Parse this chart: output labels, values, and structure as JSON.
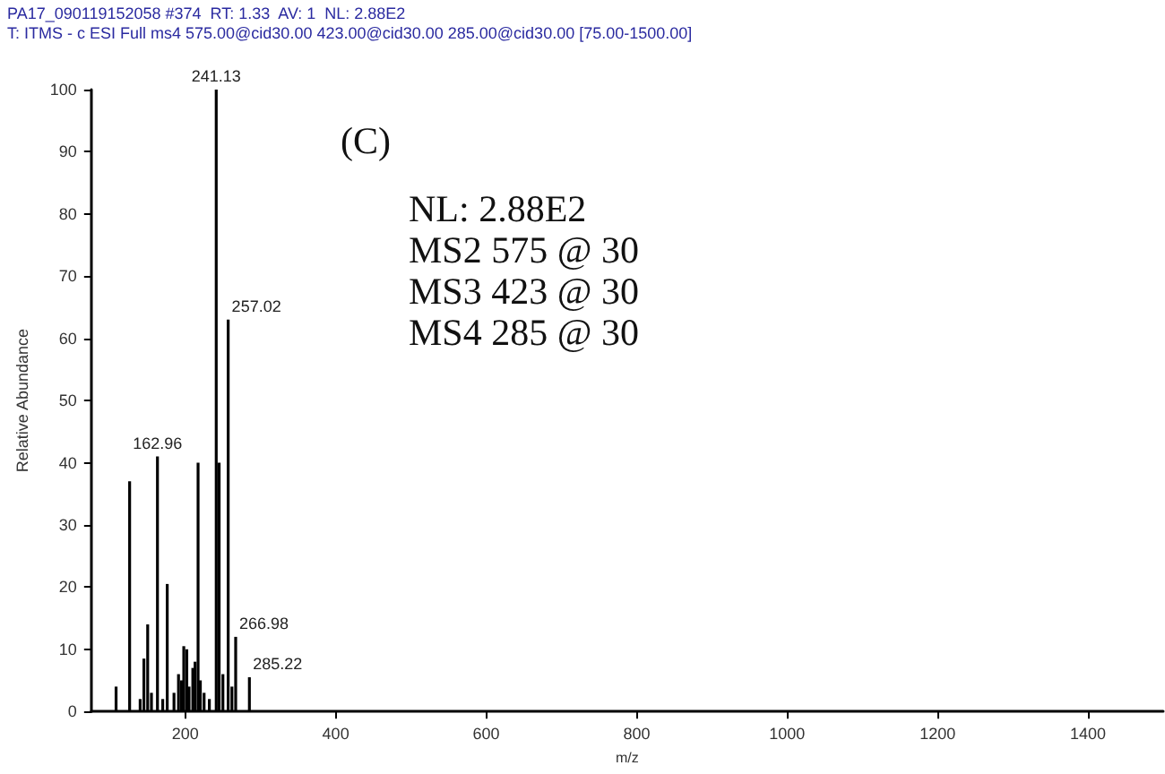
{
  "chart_data": {
    "type": "bar",
    "title": "PA17_090119152058 #374  RT: 1.33  AV: 1  NL: 2.88E2",
    "subtitle": "T: ITMS - c ESI Full ms4 575.00@cid30.00 423.00@cid30.00 285.00@cid30.00 [75.00-1500.00]",
    "xlabel": "m/z",
    "ylabel": "Relative Abundance",
    "annotations": [
      "(C)",
      "NL: 2.88E2",
      "MS2 575 @ 30",
      "MS3 423 @ 30",
      "MS4 285 @ 30",
      {
        "text": "162.96",
        "x": 163,
        "y": 41
      },
      {
        "text": "241.13",
        "x": 241.13,
        "y": 100
      },
      {
        "text": "257.02",
        "x": 257.02,
        "y": 63
      },
      {
        "text": "266.98",
        "x": 266.98,
        "y": 12
      },
      {
        "text": "285.22",
        "x": 285.22,
        "y": 5.5
      }
    ],
    "x": [
      108,
      126,
      140,
      145,
      150,
      155,
      163,
      170,
      176,
      185,
      191,
      195,
      198,
      202,
      205,
      210,
      213,
      217,
      220,
      225,
      232,
      241.13,
      245,
      250,
      257.02,
      262,
      266.98,
      285.22
    ],
    "values": [
      4,
      37,
      2,
      8.5,
      14,
      3,
      41,
      2,
      20.5,
      3,
      6,
      5,
      10.5,
      10,
      4,
      7,
      8,
      40,
      5,
      3,
      2,
      100,
      40,
      6,
      63,
      4,
      12,
      5.5
    ],
    "color": "#000000",
    "xlim": [
      75,
      1500
    ],
    "xticks": [
      200,
      400,
      600,
      800,
      1000,
      1200,
      1400
    ],
    "ylim": [
      0,
      100
    ],
    "yticks": [
      0,
      10,
      20,
      30,
      40,
      50,
      60,
      70,
      80,
      90,
      100
    ],
    "grid": false
  }
}
